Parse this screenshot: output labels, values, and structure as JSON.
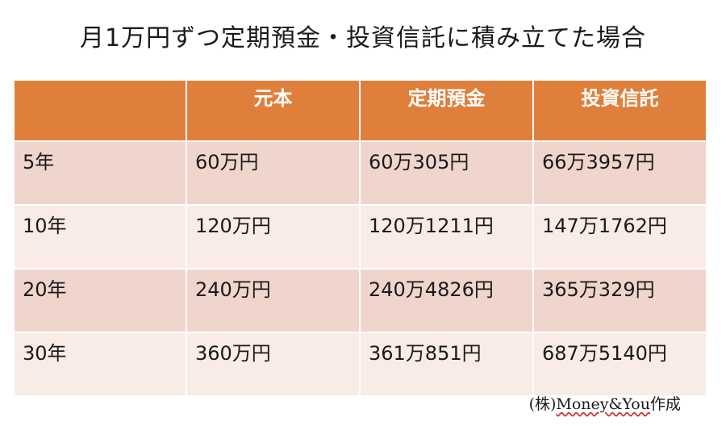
{
  "title": "月1万円ずつ定期預金・投資信託に積み立てた場合",
  "table": {
    "headers": [
      "",
      "元本",
      "定期預金",
      "投資信託"
    ],
    "rows": [
      [
        "5年",
        "60万円",
        "60万305円",
        "66万3957円"
      ],
      [
        "10年",
        "120万円",
        "120万1211円",
        "147万1762円"
      ],
      [
        "20年",
        "240万円",
        "240万4826円",
        "365万329円"
      ],
      [
        "30年",
        "360万円",
        "361万851円",
        "687万5140円"
      ]
    ]
  },
  "credit": {
    "prefix": "(株)",
    "brand": "Money&You",
    "suffix": "作成"
  },
  "colors": {
    "header": "#e07f3c",
    "row_dark": "#f0d5cc",
    "row_light": "#f9ebe6"
  }
}
